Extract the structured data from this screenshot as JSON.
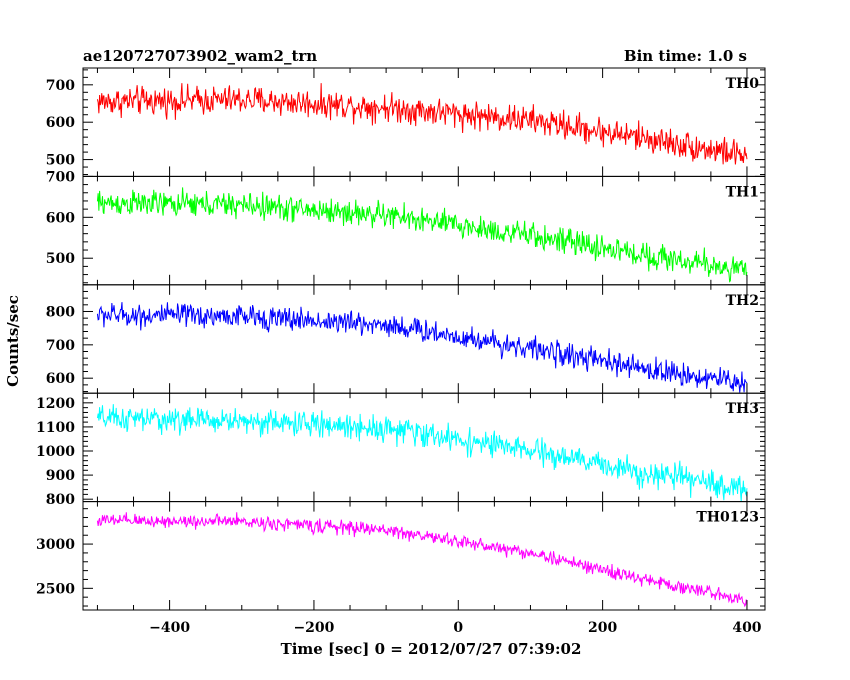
{
  "header": {
    "title": "ae120727073902_wam2_trn",
    "bin_time": "Bin time: 1.0 s"
  },
  "axes": {
    "xlabel": "Time [sec] 0 = 2012/07/27 07:39:02",
    "ylabel": "Counts/sec"
  },
  "chart_data": {
    "type": "line",
    "title": "ae120727073902_wam2_trn",
    "subtitle": "Bin time: 1.0 s",
    "xlabel": "Time [sec] 0 = 2012/07/27 07:39:02",
    "ylabel": "Counts/sec",
    "xlim": [
      -520,
      425
    ],
    "x_range_data": [
      -500,
      400
    ],
    "bin_seconds": 1.0,
    "x_ticks": [
      -400,
      -200,
      0,
      200,
      400
    ],
    "grid": false,
    "panels": [
      {
        "name": "TH0",
        "color": "#ff0000",
        "ylim": [
          455,
          745
        ],
        "y_ticks": [
          500,
          600,
          700
        ],
        "trend_x": [
          -500,
          -300,
          -100,
          100,
          250,
          400
        ],
        "trend_y": [
          655,
          660,
          640,
          605,
          560,
          510
        ],
        "noise_amplitude": 40
      },
      {
        "name": "TH1",
        "color": "#00ff00",
        "ylim": [
          435,
          700
        ],
        "y_ticks": [
          500,
          600,
          700
        ],
        "trend_x": [
          -500,
          -300,
          -100,
          100,
          250,
          400
        ],
        "trend_y": [
          635,
          630,
          605,
          555,
          510,
          470
        ],
        "noise_amplitude": 33
      },
      {
        "name": "TH2",
        "color": "#0000ff",
        "ylim": [
          555,
          880
        ],
        "y_ticks": [
          600,
          700,
          800
        ],
        "trend_x": [
          -500,
          -300,
          -100,
          100,
          250,
          400
        ],
        "trend_y": [
          790,
          785,
          760,
          690,
          630,
          585
        ],
        "noise_amplitude": 37
      },
      {
        "name": "TH3",
        "color": "#00ffff",
        "ylim": [
          790,
          1240
        ],
        "y_ticks": [
          800,
          900,
          1000,
          1100,
          1200
        ],
        "trend_x": [
          -500,
          -300,
          -100,
          100,
          250,
          400
        ],
        "trend_y": [
          1135,
          1125,
          1095,
          1000,
          915,
          840
        ],
        "noise_amplitude": 55
      },
      {
        "name": "TH0123",
        "color": "#ff00ff",
        "ylim": [
          2255,
          3480
        ],
        "y_ticks": [
          2500,
          3000
        ],
        "trend_x": [
          -500,
          -300,
          -100,
          100,
          250,
          400
        ],
        "trend_y": [
          3265,
          3255,
          3160,
          2900,
          2610,
          2370
        ],
        "noise_amplitude": 80
      }
    ]
  }
}
